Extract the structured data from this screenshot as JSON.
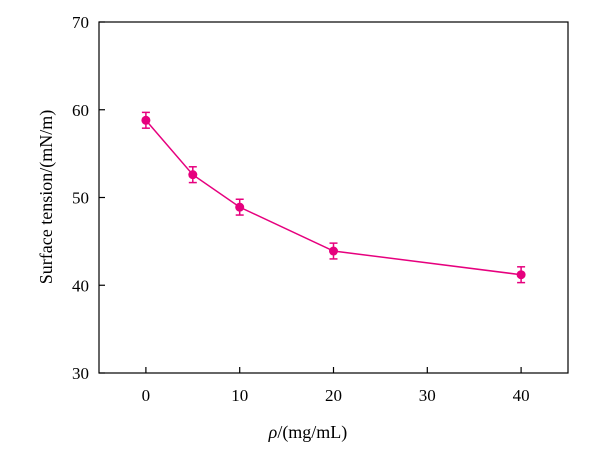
{
  "chart_data": {
    "type": "line",
    "title": "",
    "xlabel": {
      "var": "ρ",
      "unit": "/(mg/mL)"
    },
    "ylabel": "Surface tension/(mN/m)",
    "xlim": [
      -5,
      45
    ],
    "ylim": [
      30,
      70
    ],
    "xticks": [
      0,
      10,
      20,
      30,
      40
    ],
    "yticks": [
      30,
      40,
      50,
      60,
      70
    ],
    "grid": false,
    "legend": "none",
    "color": "#e6007e",
    "series": [
      {
        "x": [
          0,
          5,
          10,
          20,
          40
        ],
        "y": [
          58.8,
          52.6,
          48.9,
          43.9,
          41.2
        ],
        "error": [
          0.9,
          0.9,
          0.9,
          0.9,
          0.9
        ]
      }
    ]
  }
}
